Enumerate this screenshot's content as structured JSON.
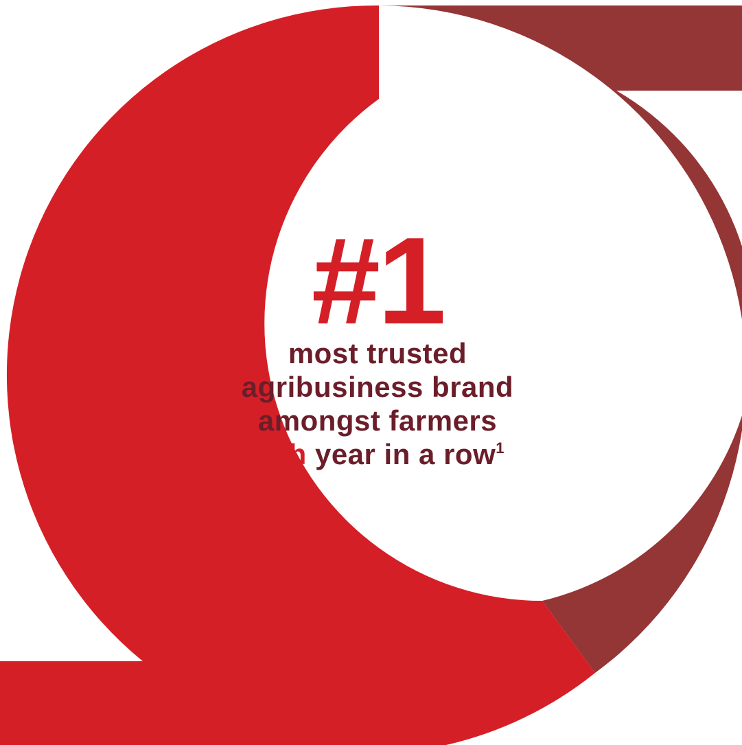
{
  "colors": {
    "primary_red": "#d51f27",
    "dark_red": "#943536",
    "text_maroon": "#6b1e2a",
    "background": "#ffffff"
  },
  "headline": {
    "rank": "#1",
    "line1": "most trusted",
    "line2": "agribusiness brand",
    "line3": "amongst farmers",
    "line4_highlight": "fifth",
    "line4_rest": " year in a row",
    "footnote_marker": "1"
  },
  "ring": {
    "segments": [
      {
        "color_key": "primary_red",
        "fraction": 0.65
      },
      {
        "color_key": "dark_red",
        "fraction": 0.35
      }
    ]
  }
}
